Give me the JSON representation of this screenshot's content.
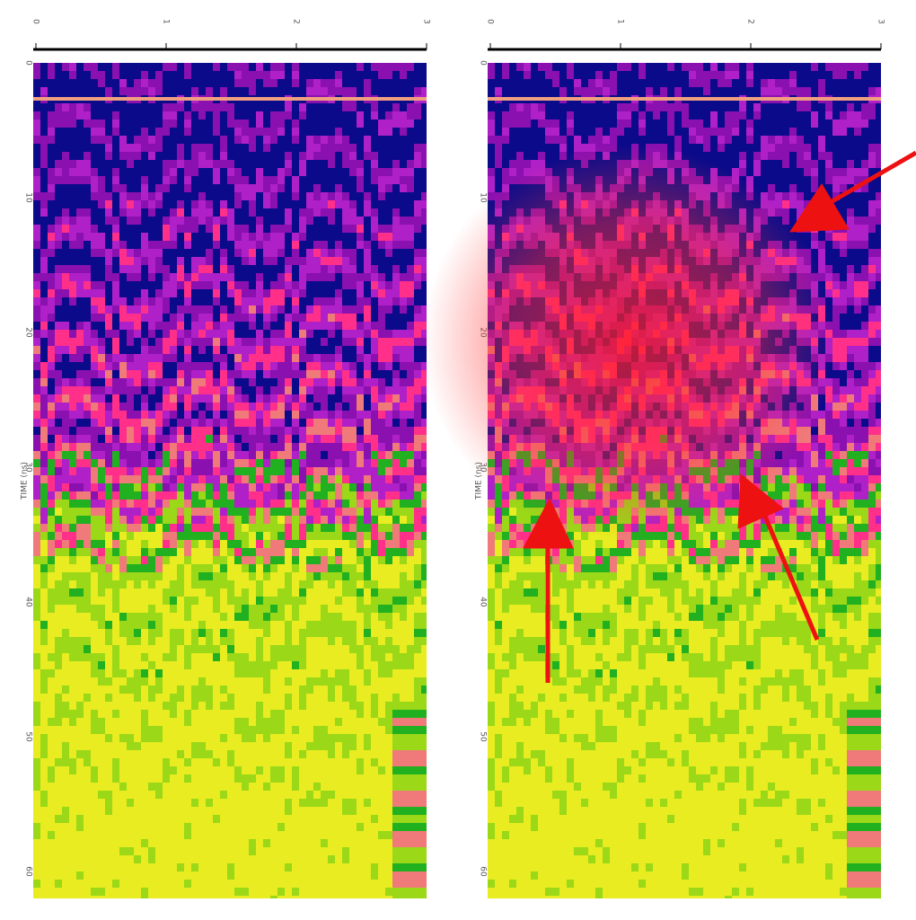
{
  "panels": [
    {
      "x_ticks": [
        "0",
        "1",
        "2",
        "3"
      ],
      "y_axis_label": "TIME (ns)",
      "y_ticks": [
        "0",
        "10",
        "20",
        "30",
        "40",
        "50",
        "60"
      ]
    },
    {
      "x_ticks": [
        "0",
        "1",
        "2",
        "3"
      ],
      "y_axis_label": "TIME (ns)",
      "y_ticks": [
        "0",
        "10",
        "20",
        "30",
        "40",
        "50",
        "60"
      ]
    }
  ]
}
